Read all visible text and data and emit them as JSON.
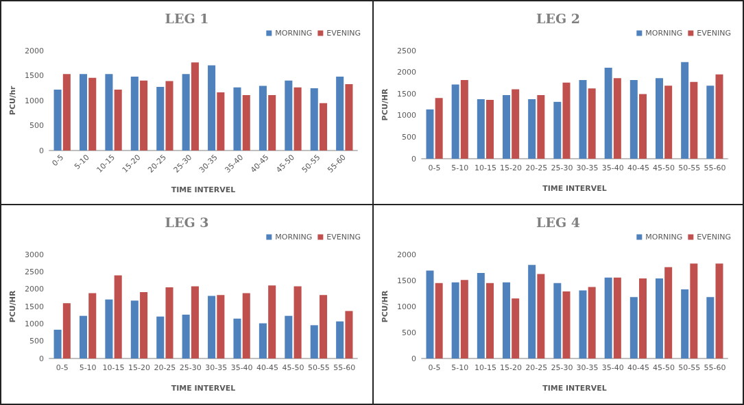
{
  "chart_data": [
    {
      "type": "bar",
      "title": "LEG 1",
      "xlabel": "TIME INTERVEL",
      "ylabel": "PCU/hr",
      "categories": [
        "0-5",
        "5-10",
        "10-15",
        "15-20",
        "20-25",
        "25-30",
        "30-35",
        "35-40",
        "40-45",
        "45-50",
        "50-55",
        "55-60"
      ],
      "series": [
        {
          "name": "MORNING",
          "color": "#4f81bd",
          "values": [
            1220,
            1530,
            1530,
            1480,
            1275,
            1530,
            1705,
            1265,
            1295,
            1400,
            1245,
            1480
          ]
        },
        {
          "name": "EVENING",
          "color": "#c0504d",
          "values": [
            1530,
            1455,
            1220,
            1400,
            1390,
            1765,
            1165,
            1110,
            1110,
            1265,
            950,
            1330
          ]
        }
      ],
      "ylim": [
        0,
        2000
      ],
      "yticks": [
        0,
        500,
        1000,
        1500,
        2000
      ],
      "grid": false,
      "legend": "top right"
    },
    {
      "type": "bar",
      "title": "LEG 2",
      "xlabel": "TIME INTERVEL",
      "ylabel": "PCU/HR",
      "categories": [
        "0-5",
        "5-10",
        "10-15",
        "15-20",
        "20-25",
        "25-30",
        "30-35",
        "35-40",
        "40-45",
        "45-50",
        "50-55",
        "55-60"
      ],
      "series": [
        {
          "name": "MORNING",
          "color": "#4f81bd",
          "values": [
            1140,
            1715,
            1375,
            1470,
            1375,
            1315,
            1820,
            2105,
            1820,
            1865,
            2235,
            1690
          ]
        },
        {
          "name": "EVENING",
          "color": "#c0504d",
          "values": [
            1405,
            1820,
            1360,
            1605,
            1470,
            1760,
            1625,
            1865,
            1495,
            1690,
            1775,
            1950
          ]
        }
      ],
      "ylim": [
        0,
        2500
      ],
      "yticks": [
        0,
        500,
        1000,
        1500,
        2000,
        2500
      ],
      "grid": false,
      "legend": "top right"
    },
    {
      "type": "bar",
      "title": "LEG 3",
      "xlabel": "TIME INTERVEL",
      "ylabel": "PCU/HR",
      "categories": [
        "0-5",
        "5-10",
        "10-15",
        "15-20",
        "20-25",
        "25-30",
        "30-35",
        "35-40",
        "40-45",
        "45-50",
        "50-55",
        "55-60"
      ],
      "series": [
        {
          "name": "MORNING",
          "color": "#4f81bd",
          "values": [
            830,
            1230,
            1700,
            1670,
            1210,
            1265,
            1805,
            1150,
            1015,
            1230,
            960,
            1070
          ]
        },
        {
          "name": "EVENING",
          "color": "#c0504d",
          "values": [
            1595,
            1885,
            2400,
            1915,
            2055,
            2080,
            1830,
            1885,
            2105,
            2080,
            1830,
            1370
          ]
        }
      ],
      "ylim": [
        0,
        3000
      ],
      "yticks": [
        0,
        500,
        1000,
        1500,
        2000,
        2500,
        3000
      ],
      "grid": false,
      "legend": "top right"
    },
    {
      "type": "bar",
      "title": "LEG 4",
      "xlabel": "TIME INTERVEL",
      "ylabel": "PCU/HR",
      "categories": [
        "0-5",
        "5-10",
        "10-15",
        "15-20",
        "20-25",
        "25-30",
        "30-35",
        "35-40",
        "40-45",
        "45-50",
        "50-55",
        "55-60"
      ],
      "series": [
        {
          "name": "MORNING",
          "color": "#4f81bd",
          "values": [
            1690,
            1465,
            1645,
            1465,
            1800,
            1450,
            1310,
            1555,
            1180,
            1540,
            1330,
            1180
          ]
        },
        {
          "name": "EVENING",
          "color": "#c0504d",
          "values": [
            1450,
            1510,
            1450,
            1155,
            1625,
            1290,
            1375,
            1555,
            1540,
            1755,
            1825,
            1825
          ]
        }
      ],
      "ylim": [
        0,
        2000
      ],
      "yticks": [
        0,
        500,
        1000,
        1500,
        2000
      ],
      "grid": false,
      "legend": "top right"
    }
  ]
}
